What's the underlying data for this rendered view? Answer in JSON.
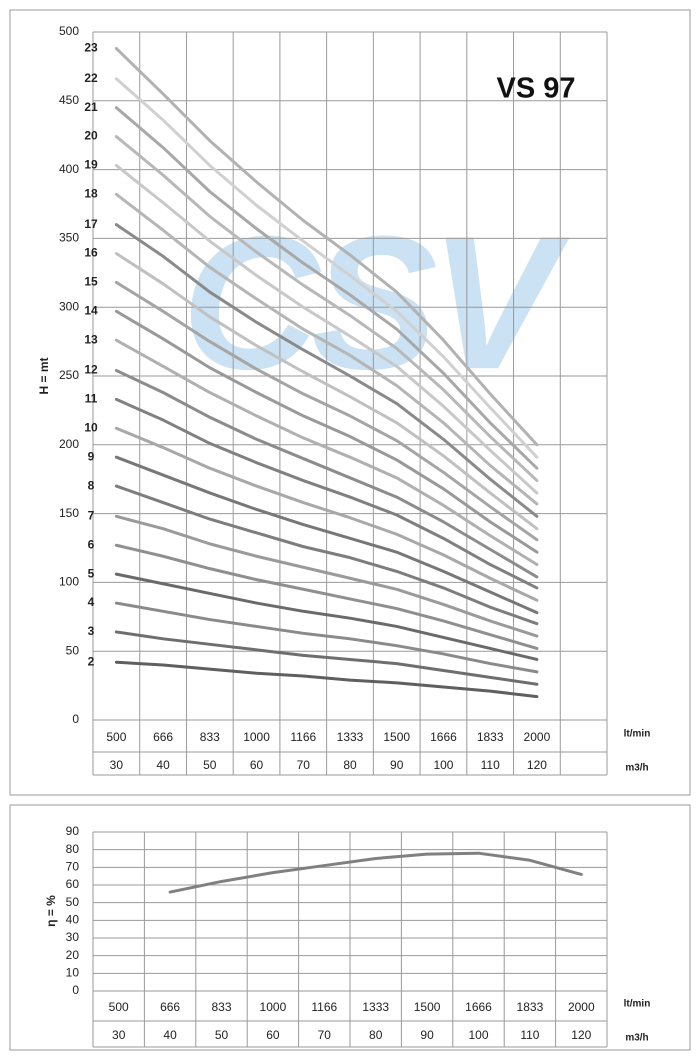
{
  "chart_data": [
    {
      "type": "line",
      "title": "VS 97",
      "watermark": "CSV",
      "ylabel": "H = mt",
      "x_units": [
        "lt/min",
        "m3/h"
      ],
      "categories": [
        "500",
        "666",
        "833",
        "1000",
        "1166",
        "1333",
        "1500",
        "1666",
        "1833",
        "2000"
      ],
      "categories2": [
        "30",
        "40",
        "50",
        "60",
        "70",
        "80",
        "90",
        "100",
        "110",
        "120"
      ],
      "ylim": [
        0,
        500
      ],
      "yticks": [
        0,
        50,
        100,
        150,
        200,
        250,
        300,
        350,
        400,
        450,
        500
      ],
      "grid": true,
      "series": [
        {
          "name": "2",
          "color": "#5f5f5f",
          "values": [
            42,
            40,
            37,
            34,
            32,
            29,
            27,
            24,
            21,
            17
          ]
        },
        {
          "name": "3",
          "color": "#6e6e6e",
          "values": [
            64,
            59,
            55,
            51,
            47,
            44,
            41,
            36,
            31,
            26
          ]
        },
        {
          "name": "4",
          "color": "#8a8a8a",
          "values": [
            85,
            79,
            73,
            68,
            63,
            59,
            54,
            48,
            41,
            35
          ]
        },
        {
          "name": "5",
          "color": "#6a6a6a",
          "values": [
            106,
            99,
            92,
            85,
            79,
            74,
            68,
            60,
            52,
            44
          ]
        },
        {
          "name": "6",
          "color": "#8f8f8f",
          "values": [
            127,
            119,
            110,
            102,
            95,
            88,
            81,
            72,
            62,
            52
          ]
        },
        {
          "name": "7",
          "color": "#9a9a9a",
          "values": [
            148,
            139,
            128,
            119,
            111,
            103,
            95,
            84,
            72,
            61
          ]
        },
        {
          "name": "8",
          "color": "#7d7d7d",
          "values": [
            170,
            158,
            146,
            136,
            126,
            118,
            108,
            96,
            82,
            70
          ]
        },
        {
          "name": "9",
          "color": "#777777",
          "values": [
            191,
            178,
            165,
            153,
            142,
            132,
            122,
            108,
            93,
            78
          ]
        },
        {
          "name": "10",
          "color": "#a8a8a8",
          "values": [
            212,
            198,
            183,
            170,
            158,
            147,
            135,
            120,
            103,
            87
          ]
        },
        {
          "name": "11",
          "color": "#808080",
          "values": [
            233,
            218,
            201,
            187,
            174,
            162,
            149,
            132,
            113,
            96
          ]
        },
        {
          "name": "12",
          "color": "#8c8c8c",
          "values": [
            254,
            238,
            220,
            204,
            190,
            176,
            162,
            144,
            124,
            104
          ]
        },
        {
          "name": "13",
          "color": "#b0b0b0",
          "values": [
            276,
            257,
            238,
            221,
            205,
            191,
            176,
            156,
            134,
            113
          ]
        },
        {
          "name": "14",
          "color": "#999999",
          "values": [
            297,
            277,
            256,
            238,
            221,
            206,
            189,
            168,
            144,
            122
          ]
        },
        {
          "name": "15",
          "color": "#a5a5a5",
          "values": [
            318,
            297,
            275,
            255,
            237,
            221,
            203,
            180,
            155,
            131
          ]
        },
        {
          "name": "16",
          "color": "#c0c0c0",
          "values": [
            339,
            317,
            293,
            272,
            253,
            235,
            216,
            192,
            165,
            139
          ]
        },
        {
          "name": "17",
          "color": "#8a8a8a",
          "values": [
            360,
            337,
            311,
            289,
            269,
            250,
            230,
            204,
            175,
            148
          ]
        },
        {
          "name": "18",
          "color": "#b5b5b5",
          "values": [
            382,
            356,
            329,
            306,
            284,
            265,
            243,
            216,
            185,
            157
          ]
        },
        {
          "name": "19",
          "color": "#c8c8c8",
          "values": [
            403,
            376,
            348,
            323,
            300,
            279,
            257,
            228,
            196,
            165
          ]
        },
        {
          "name": "20",
          "color": "#b8b8b8",
          "values": [
            424,
            396,
            366,
            340,
            316,
            294,
            270,
            240,
            206,
            174
          ]
        },
        {
          "name": "21",
          "color": "#a8a8a8",
          "values": [
            445,
            416,
            384,
            357,
            332,
            309,
            284,
            252,
            216,
            183
          ]
        },
        {
          "name": "22",
          "color": "#d0d0d0",
          "values": [
            466,
            436,
            403,
            374,
            348,
            323,
            297,
            264,
            227,
            191
          ]
        },
        {
          "name": "23",
          "color": "#b2b2b2",
          "values": [
            488,
            455,
            421,
            391,
            363,
            338,
            311,
            276,
            237,
            200
          ]
        }
      ]
    },
    {
      "type": "line",
      "ylabel": "η = %",
      "x_units": [
        "lt/min",
        "m3/h"
      ],
      "categories": [
        "500",
        "666",
        "833",
        "1000",
        "1166",
        "1333",
        "1500",
        "1666",
        "1833",
        "2000"
      ],
      "categories2": [
        "30",
        "40",
        "50",
        "60",
        "70",
        "80",
        "90",
        "100",
        "110",
        "120"
      ],
      "ylim": [
        0,
        90
      ],
      "yticks": [
        0,
        10,
        20,
        30,
        40,
        50,
        60,
        70,
        80,
        90
      ],
      "grid": true,
      "series": [
        {
          "color": "#808080",
          "values": [
            null,
            56,
            62,
            67,
            71,
            75,
            77.5,
            78,
            74,
            66
          ]
        }
      ]
    }
  ]
}
